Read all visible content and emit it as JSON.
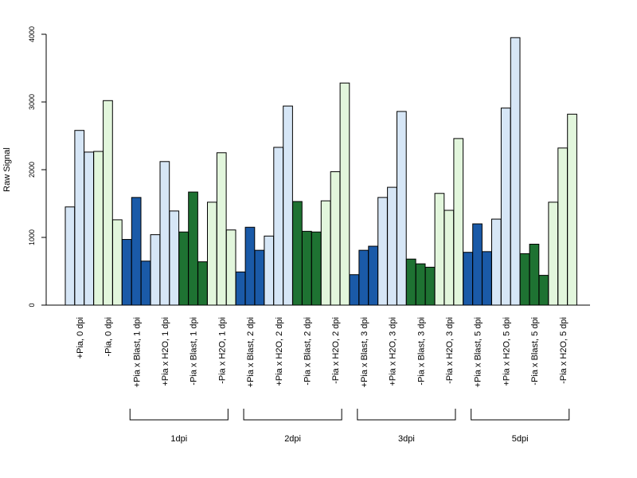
{
  "chart_data": {
    "type": "bar",
    "ylabel": "Raw Signal",
    "ylim": [
      0,
      4000
    ],
    "yticks": [
      0,
      1000,
      2000,
      3000,
      4000
    ],
    "legend": "none",
    "grid": false,
    "categories": [
      "+Pia, 0 dpi",
      "-Pia, 0 dpi",
      "+Pia x Blast, 1 dpi",
      "+Pia x H2O, 1 dpi",
      "-Pia x Blast, 1 dpi",
      "-Pia x H2O, 1 dpi",
      "+Pia x Blast, 2 dpi",
      "+Pia x H2O, 2 dpi",
      "-Pia x Blast, 2 dpi",
      "-Pia x H2O, 2 dpi",
      "+Pia x Blast, 3 dpi",
      "+Pia x H2O, 3 dpi",
      "-Pia x Blast, 3 dpi",
      "-Pia x H2O, 3 dpi",
      "+Pia x Blast, 5 dpi",
      "+Pia x H2O, 5 dpi",
      "-Pia x Blast, 5 dpi",
      "-Pia x H2O, 5 dpi"
    ],
    "values": [
      [
        1450,
        2580,
        2260
      ],
      [
        2270,
        3020,
        1260
      ],
      [
        970,
        1590,
        650
      ],
      [
        1040,
        2120,
        1390
      ],
      [
        1080,
        1670,
        640
      ],
      [
        1520,
        2250,
        1110
      ],
      [
        490,
        1150,
        810
      ],
      [
        1020,
        2330,
        2940
      ],
      [
        1530,
        1090,
        1080
      ],
      [
        1540,
        1970,
        3280
      ],
      [
        450,
        810,
        870
      ],
      [
        1590,
        1740,
        2860
      ],
      [
        680,
        610,
        560
      ],
      [
        1650,
        1400,
        2460
      ],
      [
        780,
        1200,
        790
      ],
      [
        1270,
        2910,
        3950
      ],
      [
        760,
        900,
        440
      ],
      [
        1520,
        2320,
        2820
      ]
    ],
    "bar_colors": [
      "#d6e6f6",
      "#e2f6dc",
      "#1a5aa8",
      "#d6e6f6",
      "#1e7232",
      "#e2f6dc",
      "#1a5aa8",
      "#d6e6f6",
      "#1e7232",
      "#e2f6dc",
      "#1a5aa8",
      "#d6e6f6",
      "#1e7232",
      "#e2f6dc",
      "#1a5aa8",
      "#d6e6f6",
      "#1e7232",
      "#e2f6dc"
    ],
    "groups": [
      {
        "label": "1dpi",
        "first": 2,
        "last": 5
      },
      {
        "label": "2dpi",
        "first": 6,
        "last": 9
      },
      {
        "label": "3dpi",
        "first": 10,
        "last": 13
      },
      {
        "label": "5dpi",
        "first": 14,
        "last": 17
      }
    ]
  }
}
